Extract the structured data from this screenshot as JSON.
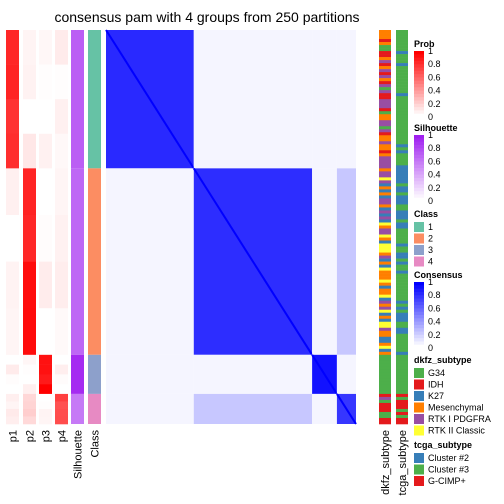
{
  "chart_data": {
    "type": "heatmap",
    "title": "consensus pam with 4 groups from 250 partitions",
    "left_columns": [
      "p1",
      "p2",
      "p3",
      "p4",
      "Silhouette",
      "Class"
    ],
    "right_columns": [
      "dkfz_subtype",
      "tcga_subtype"
    ],
    "groups": [
      {
        "class": 1,
        "rows": 46,
        "p": [
          0.85,
          0.05,
          0.02,
          0.06
        ],
        "silhouette": 0.72
      },
      {
        "class": 2,
        "rows": 62,
        "p": [
          0.04,
          0.9,
          0.02,
          0.05
        ],
        "silhouette": 0.68
      },
      {
        "class": 3,
        "rows": 13,
        "p": [
          0.02,
          0.03,
          0.95,
          0.02
        ],
        "silhouette": 0.95
      },
      {
        "class": 4,
        "rows": 10,
        "p": [
          0.05,
          0.2,
          0.02,
          0.7
        ],
        "silhouette": 0.6
      }
    ],
    "legends": [
      {
        "title": "Prob",
        "type": "gradient",
        "low": "#ffffff",
        "high": "#ff0000",
        "ticks": [
          "1",
          "0.8",
          "0.6",
          "0.4",
          "0.2",
          "0"
        ]
      },
      {
        "title": "Silhouette",
        "type": "gradient",
        "low": "#ffffff",
        "high": "#a020f0",
        "ticks": [
          "1",
          "0.8",
          "0.6",
          "0.4",
          "0.2",
          "0"
        ]
      },
      {
        "title": "Class",
        "type": "discrete",
        "items": [
          {
            "label": "1",
            "color": "#66c2a5"
          },
          {
            "label": "2",
            "color": "#fc8d62"
          },
          {
            "label": "3",
            "color": "#8da0cb"
          },
          {
            "label": "4",
            "color": "#e78ac3"
          }
        ]
      },
      {
        "title": "Consensus",
        "type": "gradient",
        "low": "#ffffff",
        "high": "#0000ff",
        "ticks": [
          "1",
          "0.8",
          "0.6",
          "0.4",
          "0.2",
          "0"
        ]
      },
      {
        "title": "dkfz_subtype",
        "type": "discrete",
        "items": [
          {
            "label": "G34",
            "color": "#4daf4a"
          },
          {
            "label": "IDH",
            "color": "#e41a1c"
          },
          {
            "label": "K27",
            "color": "#377eb8"
          },
          {
            "label": "Mesenchymal",
            "color": "#ff7f00"
          },
          {
            "label": "RTK I PDGFRA",
            "color": "#984ea3"
          },
          {
            "label": "RTK II Classic",
            "color": "#ffff33"
          }
        ]
      },
      {
        "title": "tcga_subtype",
        "type": "discrete",
        "items": [
          {
            "label": "Cluster #2",
            "color": "#377eb8"
          },
          {
            "label": "Cluster #3",
            "color": "#4daf4a"
          },
          {
            "label": "G-CIMP+",
            "color": "#e41a1c"
          }
        ]
      }
    ]
  }
}
